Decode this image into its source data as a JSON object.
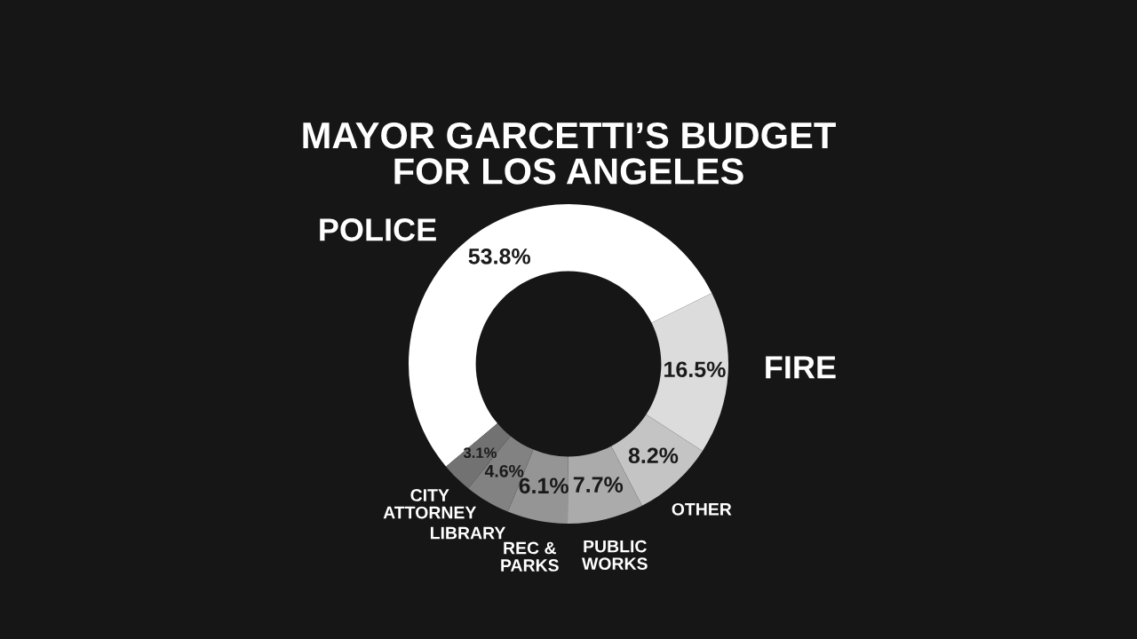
{
  "chart_data": {
    "type": "donut",
    "title": "MAYOR GARCETTI’S BUDGET\nFOR LOS ANGELES",
    "categories": [
      "POLICE",
      "FIRE",
      "OTHER",
      "PUBLIC\nWORKS",
      "REC &\nPARKS",
      "LIBRARY",
      "CITY\nATTORNEY"
    ],
    "values": [
      53.8,
      16.5,
      8.2,
      7.7,
      6.1,
      4.6,
      3.1
    ],
    "colors": [
      "#ffffff",
      "#dcdcdc",
      "#c4c4c4",
      "#ababab",
      "#959595",
      "#828282",
      "#727272"
    ],
    "value_labels": [
      "53.8%",
      "16.5%",
      "8.2%",
      "7.7%",
      "6.1%",
      "4.6%",
      "3.1%"
    ],
    "legend": false
  }
}
